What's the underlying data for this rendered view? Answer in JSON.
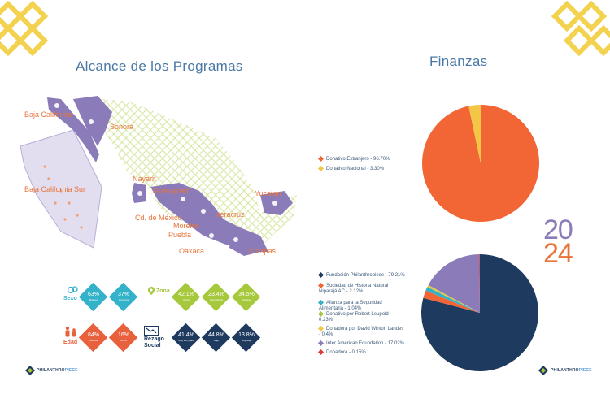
{
  "colors": {
    "accent_yellow": "#f3d250",
    "map_purple": "#8b7bb8",
    "label_orange": "#e8743b",
    "title_blue": "#4a78a6",
    "teal": "#34b2c9",
    "green": "#a6c83c",
    "red_orange": "#e8603c",
    "navy": "#1f3a5f"
  },
  "left": {
    "title": "Alcance de los Programas",
    "regions": [
      "Baja California",
      "Sonora",
      "Baja California Sur",
      "Nayarit",
      "Guanajuato",
      "Cd. de México",
      "Morelos",
      "Puebla",
      "Veracruz",
      "Yucatan",
      "Oaxaca",
      "Chiapas"
    ],
    "demographics": {
      "sexo": {
        "label": "Sexo",
        "items": [
          {
            "value": "63%",
            "sub": "Mujeres"
          },
          {
            "value": "37%",
            "sub": "Hombres"
          }
        ]
      },
      "zona": {
        "label": "Zona",
        "items": [
          {
            "value": "42.1%",
            "sub": "Rural"
          },
          {
            "value": "23.4%",
            "sub": "Semiurbana"
          },
          {
            "value": "34.5%",
            "sub": "Urbana"
          }
        ]
      },
      "edad": {
        "label": "Edad",
        "items": [
          {
            "value": "84%",
            "sub": "Adultos"
          },
          {
            "value": "16%",
            "sub": "Niños"
          }
        ]
      },
      "rezago": {
        "label": "Rezago Social",
        "items": [
          {
            "value": "41.4%",
            "sub": "Muy alto y alto"
          },
          {
            "value": "44.8%",
            "sub": "Bajo"
          },
          {
            "value": "13.8%",
            "sub": "Muy Bajo"
          }
        ]
      }
    },
    "brand_a": "PHILANTHRO",
    "brand_b": "PIECE"
  },
  "right": {
    "title": "Finanzas",
    "year_top": "20",
    "year_bottom": "24",
    "brand_a": "PHILANTHRO",
    "brand_b": "PIECE"
  },
  "chart_data": [
    {
      "type": "pie",
      "title": "",
      "series": [
        {
          "name": "Donativo Extranjero - 96.70%",
          "value": 96.7,
          "color": "#f26535"
        },
        {
          "name": "Donativo Nacional - 3.30%",
          "value": 3.3,
          "color": "#f3c646"
        }
      ],
      "legend": "left"
    },
    {
      "type": "pie",
      "title": "",
      "series": [
        {
          "name": "Fundación Philanthropiece - 79.21%",
          "value": 79.21,
          "color": "#1f3a5f"
        },
        {
          "name": "Sociedad de Historia Natural Niparajá AC - 2.12%",
          "value": 2.12,
          "color": "#f26535"
        },
        {
          "name": "Alianza para la Seguridad Alimentaria - 1.04%",
          "value": 1.04,
          "color": "#34b2c9"
        },
        {
          "name": "Donativo por Robert Leupold - 0.23%",
          "value": 0.23,
          "color": "#a6c83c"
        },
        {
          "name": "Donadora por David Winton Landes - 0.4%",
          "value": 0.4,
          "color": "#f3c646"
        },
        {
          "name": "Inter American Foundation - 17.02%",
          "value": 17.02,
          "color": "#8b7bb8"
        },
        {
          "name": "Donadora - 0.15%",
          "value": 0.15,
          "color": "#e03a2f"
        }
      ],
      "legend": "left"
    }
  ]
}
